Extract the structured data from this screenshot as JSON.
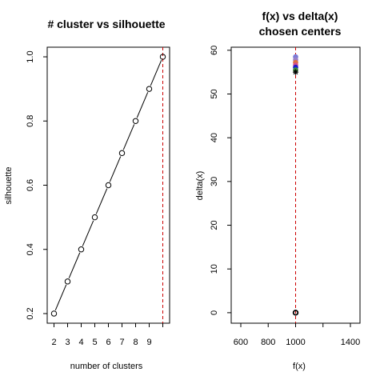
{
  "chart_data": [
    {
      "type": "line",
      "title": "# cluster vs silhouette",
      "xlabel": "number of clusters",
      "ylabel": "silhouette",
      "xlim": [
        1.5,
        10.5
      ],
      "ylim": [
        0.17,
        1.03
      ],
      "x_ticks": [
        2,
        3,
        4,
        5,
        6,
        7,
        8,
        9,
        10
      ],
      "x_tick_labels": [
        "2",
        "3",
        "4",
        "5",
        "6",
        "7",
        "8",
        "9",
        ""
      ],
      "y_ticks": [
        0.2,
        0.4,
        0.6,
        0.8,
        1.0
      ],
      "y_tick_labels": [
        "0.2",
        "0.4",
        "0.6",
        "0.8",
        "1.0"
      ],
      "x": [
        2,
        3,
        4,
        5,
        6,
        7,
        8,
        9,
        10
      ],
      "y": [
        0.2,
        0.3,
        0.4,
        0.5,
        0.6,
        0.7,
        0.8,
        0.9,
        1.0
      ],
      "marker": "open-circle",
      "line_color": "#000000",
      "vline": {
        "x": 10,
        "color": "#cc0000",
        "style": "dashed"
      },
      "grid": false
    },
    {
      "type": "scatter",
      "title": "f(x) vs delta(x)",
      "subtitle": "chosen centers",
      "xlabel": "f(x)",
      "ylabel": "delta(x)",
      "xlim": [
        530,
        1470
      ],
      "ylim": [
        -2.4,
        60.7
      ],
      "x_ticks": [
        600,
        800,
        1000,
        1200,
        1400
      ],
      "x_tick_labels": [
        "600",
        "800",
        "1000",
        "",
        "1400"
      ],
      "y_ticks": [
        0,
        10,
        20,
        30,
        40,
        50,
        60
      ],
      "y_tick_labels": [
        "0",
        "10",
        "20",
        "30",
        "40",
        "50",
        "60"
      ],
      "points": [
        {
          "x": 1000,
          "y": 58.5,
          "color": "#7b7bd6",
          "marker": "filled-circle"
        },
        {
          "x": 1000,
          "y": 57.8,
          "color": "#9a80c8",
          "marker": "filled-circle"
        },
        {
          "x": 1000,
          "y": 57.2,
          "color": "#e07040",
          "marker": "filled-circle"
        },
        {
          "x": 1000,
          "y": 56.6,
          "color": "#d24f8f",
          "marker": "filled-circle"
        },
        {
          "x": 1000,
          "y": 56.1,
          "color": "#1a1ad0",
          "marker": "filled-circle"
        },
        {
          "x": 1000,
          "y": 55.5,
          "color": "#3d8c3d",
          "marker": "filled-circle"
        },
        {
          "x": 1000,
          "y": 55.0,
          "color": "#000000",
          "marker": "star"
        },
        {
          "x": 1000,
          "y": 0,
          "color": "#000000",
          "marker": "open-circle-bold"
        }
      ],
      "vline": {
        "x": 1000,
        "color": "#cc0000",
        "style": "dashed"
      },
      "grid": false
    }
  ]
}
